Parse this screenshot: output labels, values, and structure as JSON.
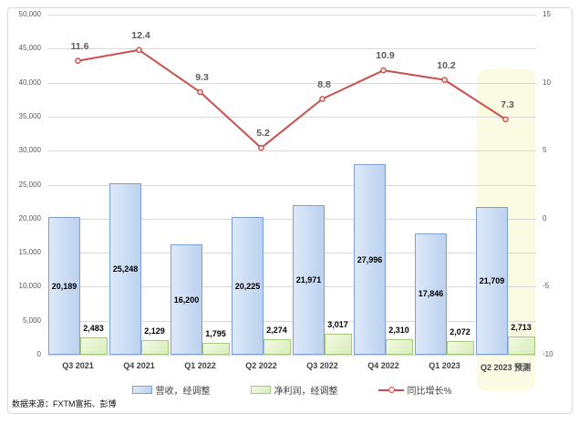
{
  "chart_data": {
    "type": "combo-bar-line",
    "categories": [
      "Q3 2021",
      "Q4 2021",
      "Q1 2022",
      "Q2 2022",
      "Q3 2022",
      "Q4 2022",
      "Q1 2023",
      "Q2 2023 预测"
    ],
    "series": [
      {
        "name": "营收，经调整",
        "type": "bar",
        "axis": "left",
        "values": [
          20189,
          25248,
          16200,
          20225,
          21971,
          27996,
          17846,
          21709
        ],
        "value_labels": [
          "20,189",
          "25,248",
          "16,200",
          "20,225",
          "21,971",
          "27,996",
          "17,846",
          "21,709"
        ],
        "fill": "#cbdcf4",
        "border": "#7da0d2"
      },
      {
        "name": "净利润，经调整",
        "type": "bar",
        "axis": "left",
        "values": [
          2483,
          2129,
          1795,
          2274,
          3017,
          2310,
          2072,
          2713
        ],
        "value_labels": [
          "2,483",
          "2,129",
          "1,795",
          "2,274",
          "3,017",
          "2,310",
          "2,072",
          "2,713"
        ],
        "fill": "#e3f2cb",
        "border": "#a7c97d"
      },
      {
        "name": "同比增长%",
        "type": "line",
        "axis": "right",
        "values": [
          11.6,
          12.4,
          9.3,
          5.2,
          8.8,
          10.9,
          10.2,
          7.3
        ],
        "value_labels": [
          "11.6",
          "12.4",
          "9.3",
          "5.2",
          "8.8",
          "10.9",
          "10.2",
          "7.3"
        ],
        "color": "#c9504c"
      }
    ],
    "left_axis": {
      "min": 0,
      "max": 50000,
      "step": 5000,
      "ticks": [
        "50,000",
        "45,000",
        "40,000",
        "35,000",
        "30,000",
        "25,000",
        "20,000",
        "15,000",
        "10,000",
        "5,000",
        "0"
      ]
    },
    "right_axis": {
      "min": -10,
      "max": 15,
      "step": 5,
      "ticks": [
        "15",
        "10",
        "5",
        "0",
        "-5",
        "-10"
      ]
    },
    "forecast_highlight_index": 7,
    "grid_color": "#d9d9d9",
    "highlight_color": "#fbfbe4",
    "source": "数据来源：FXTM富拓、彭博"
  }
}
